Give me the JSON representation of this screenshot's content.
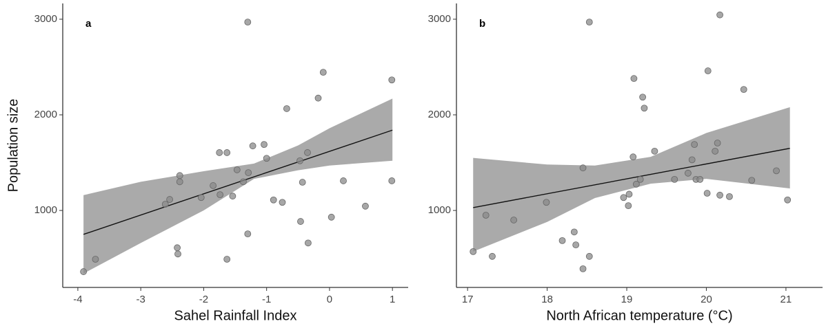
{
  "chart_data": [
    {
      "type": "scatter",
      "panel_label": "a",
      "xlabel": "Sahel Rainfall Index",
      "ylabel": "Population size",
      "xlim": [
        -4.24,
        1.25
      ],
      "ylim": [
        195,
        3165
      ],
      "xticks": [
        -4,
        -3,
        -2,
        -1,
        0,
        1
      ],
      "yticks": [
        1000,
        2000,
        3000
      ],
      "color": "#8a8a8a",
      "x": [
        -3.91,
        -3.72,
        -2.61,
        -2.54,
        -2.38,
        -2.38,
        -2.42,
        -2.41,
        -2.04,
        -1.85,
        -1.75,
        -1.63,
        -1.74,
        -1.54,
        -1.47,
        -1.37,
        -1.29,
        -1.3,
        -1.3,
        -1.22,
        -1.63,
        -1.04,
        -1.0,
        -0.89,
        -0.75,
        -0.68,
        -0.47,
        -0.46,
        -0.43,
        -0.35,
        -0.34,
        -0.18,
        -0.1,
        0.03,
        0.22,
        0.57,
        0.99,
        0.99
      ],
      "values": [
        360,
        490,
        1065,
        1115,
        1300,
        1365,
        610,
        545,
        1135,
        1260,
        1605,
        1605,
        1165,
        1150,
        1425,
        1300,
        1395,
        2970,
        755,
        1675,
        490,
        1690,
        1545,
        1110,
        1085,
        2065,
        1520,
        885,
        1295,
        1605,
        660,
        2175,
        2445,
        930,
        1310,
        1045,
        2365,
        1310
      ],
      "fit": {
        "x": [
          -3.91,
          1.0
        ],
        "values": [
          750,
          1840
        ],
        "color": "#111111"
      },
      "band": {
        "x": [
          -3.91,
          -3,
          -2,
          -1.2,
          -0.5,
          0,
          1.0
        ],
        "upper": [
          1160,
          1300,
          1410,
          1490,
          1680,
          1860,
          2170
        ],
        "lower": [
          340,
          660,
          1000,
          1330,
          1420,
          1470,
          1520
        ],
        "color": "#aaaaaa"
      }
    },
    {
      "type": "scatter",
      "panel_label": "b",
      "xlabel": "North African temperature (°C)",
      "xlim": [
        16.86,
        21.46
      ],
      "ylim": [
        195,
        3165
      ],
      "xticks": [
        17,
        18,
        19,
        20,
        21
      ],
      "yticks": [
        1000,
        2000,
        3000
      ],
      "color": "#8a8a8a",
      "x": [
        17.07,
        17.23,
        17.31,
        17.58,
        17.99,
        18.19,
        18.34,
        18.36,
        18.45,
        18.53,
        18.53,
        18.45,
        18.96,
        19.02,
        19.03,
        19.08,
        19.09,
        19.12,
        19.17,
        19.2,
        19.22,
        20.17,
        19.35,
        19.6,
        19.77,
        19.82,
        19.85,
        19.87,
        19.92,
        20.02,
        20.01,
        20.11,
        20.14,
        20.17,
        20.29,
        20.47,
        20.57,
        20.88,
        21.02
      ],
      "values": [
        570,
        950,
        520,
        900,
        1085,
        685,
        775,
        640,
        390,
        2970,
        520,
        1445,
        1135,
        1050,
        1170,
        1560,
        2380,
        1275,
        1325,
        2185,
        2070,
        3045,
        1620,
        1325,
        1390,
        1530,
        1690,
        1325,
        1325,
        2460,
        1180,
        1620,
        1705,
        1160,
        1145,
        2265,
        1315,
        1415,
        1110
      ],
      "fit": {
        "x": [
          17.07,
          21.05
        ],
        "values": [
          1030,
          1650
        ],
        "color": "#111111"
      },
      "band": {
        "x": [
          17.07,
          18,
          18.6,
          19.3,
          20,
          21.05
        ],
        "upper": [
          1550,
          1480,
          1470,
          1560,
          1810,
          2080
        ],
        "lower": [
          570,
          880,
          1130,
          1280,
          1330,
          1230
        ],
        "color": "#aaaaaa"
      }
    }
  ]
}
